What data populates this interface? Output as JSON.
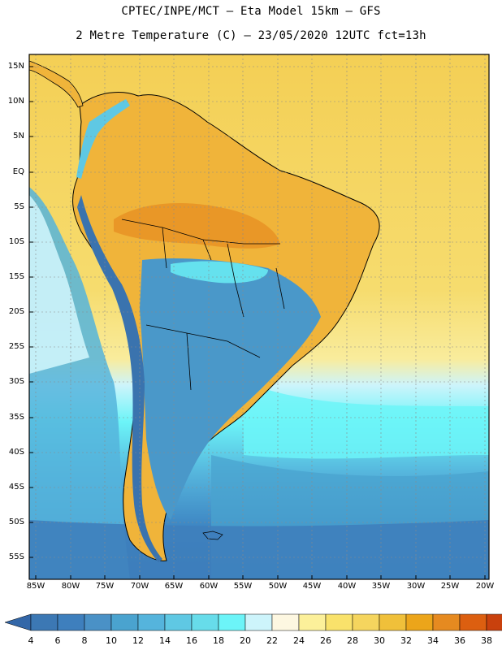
{
  "header": {
    "line1": "CPTEC/INPE/MCT –  Eta Model 15km – GFS",
    "line2": "2 Metre Temperature (C) – 23/05/2020 12UTC fct=13h"
  },
  "map": {
    "region": "South America",
    "lat_range": [
      -58,
      17
    ],
    "lon_range": [
      -86,
      -20
    ],
    "grid": "on"
  },
  "axes": {
    "lat_labels": [
      "15N",
      "10N",
      "5N",
      "EQ",
      "5S",
      "10S",
      "15S",
      "20S",
      "25S",
      "30S",
      "35S",
      "40S",
      "45S",
      "50S",
      "55S"
    ],
    "lon_labels": [
      "85W",
      "80W",
      "75W",
      "70W",
      "65W",
      "60W",
      "55W",
      "50W",
      "45W",
      "40W",
      "35W",
      "30W",
      "25W",
      "20W"
    ]
  },
  "colorbar": {
    "labels": [
      "4",
      "6",
      "8",
      "10",
      "12",
      "14",
      "16",
      "18",
      "20",
      "22",
      "24",
      "26",
      "28",
      "30",
      "32",
      "34",
      "36",
      "38"
    ],
    "colors": [
      "#3c78b4",
      "#3e7fbd",
      "#4a91c6",
      "#4aa3cf",
      "#55b4dc",
      "#5fc8e3",
      "#67dcea",
      "#6cf4f8",
      "#cdf4fb",
      "#fdf7e1",
      "#fcf09a",
      "#f9e26b",
      "#f5d55e",
      "#f0c03a",
      "#eca51a",
      "#e68a20",
      "#dc5f10",
      "#c9410d",
      "#b5340a"
    ],
    "left_arrow_color": "#3367a8",
    "right_arrow_color": "#b5340a"
  },
  "colors": {
    "ocean_warm": "#f4d35c",
    "ocean_mid": "#f9e88c",
    "ocean_cool": "#5fd3ec",
    "ocean_cold": "#3f8fc7",
    "land_hot": "#f0b43a",
    "land_cool": "#4a98c9",
    "andes": "#3a73ae"
  }
}
